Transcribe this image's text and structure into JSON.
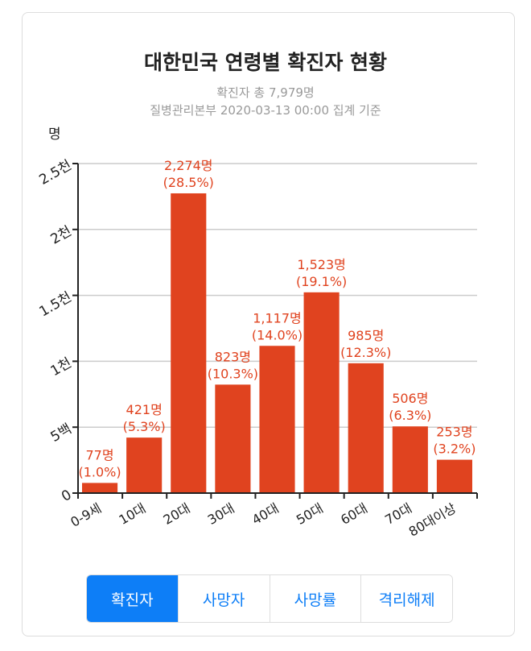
{
  "chart_data": {
    "type": "bar",
    "title": "대한민국 연령별 확진자 현황",
    "subtitle": "확진자 총 7,979명",
    "source": "질병관리본부 2020-03-13 00:00 집계 기준",
    "ylabel": "명",
    "categories": [
      "0-9세",
      "10대",
      "20대",
      "30대",
      "40대",
      "50대",
      "60대",
      "70대",
      "80대이상"
    ],
    "values": [
      77,
      421,
      2274,
      823,
      1117,
      1523,
      985,
      506,
      253
    ],
    "value_labels": [
      "77명",
      "421명",
      "2,274명",
      "823명",
      "1,117명",
      "1,523명",
      "985명",
      "506명",
      "253명"
    ],
    "percent_labels": [
      "(1.0%)",
      "(5.3%)",
      "(28.5%)",
      "(10.3%)",
      "(14.0%)",
      "(19.1%)",
      "(12.3%)",
      "(6.3%)",
      "(3.2%)"
    ],
    "ylim": [
      0,
      2500
    ],
    "yticks": [
      0,
      500,
      1000,
      1500,
      2000,
      2500
    ],
    "ytick_labels": [
      "0",
      "5백",
      "1천",
      "1.5천",
      "2천",
      "2.5천"
    ],
    "grid": true,
    "bar_color": "#e0431f"
  },
  "tabs": [
    {
      "label": "확진자",
      "active": true
    },
    {
      "label": "사망자"
    },
    {
      "label": "사망률"
    },
    {
      "label": "격리해제"
    }
  ],
  "accent": "#0d7ef7"
}
